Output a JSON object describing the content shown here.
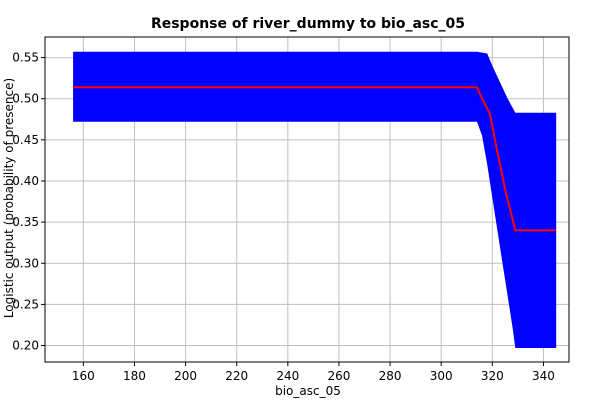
{
  "chart_data": {
    "type": "area",
    "title": "Response of river_dummy to bio_asc_05",
    "xlabel": "bio_asc_05",
    "ylabel": "Logistic output (probability of presence)",
    "xlim": [
      145,
      350
    ],
    "ylim": [
      0.18,
      0.575
    ],
    "x_ticks": [
      160,
      180,
      200,
      220,
      240,
      260,
      280,
      300,
      320,
      340
    ],
    "x_tick_labels": [
      "160",
      "180",
      "200",
      "220",
      "240",
      "260",
      "280",
      "300",
      "320",
      "340"
    ],
    "y_ticks": [
      0.2,
      0.25,
      0.3,
      0.35,
      0.4,
      0.45,
      0.5,
      0.55
    ],
    "y_tick_labels": [
      "0.20",
      "0.25",
      "0.30",
      "0.35",
      "0.40",
      "0.45",
      "0.50",
      "0.55"
    ],
    "grid": true,
    "legend": "none",
    "colors": {
      "band": "#0000ff",
      "mean_line": "#ff0000",
      "grid": "#c0c0c0",
      "axis": "#000000"
    },
    "series": [
      {
        "role": "upper",
        "x": [
          156,
          314,
          318,
          320,
          323,
          326,
          329,
          345
        ],
        "y": [
          0.557,
          0.557,
          0.555,
          0.54,
          0.52,
          0.5,
          0.483,
          0.483
        ]
      },
      {
        "role": "lower",
        "x": [
          156,
          314,
          316,
          318,
          320,
          322,
          324,
          326,
          328,
          329,
          345
        ],
        "y": [
          0.472,
          0.472,
          0.455,
          0.42,
          0.38,
          0.34,
          0.3,
          0.26,
          0.22,
          0.197,
          0.197
        ]
      },
      {
        "role": "mean",
        "x": [
          156,
          314,
          316,
          319,
          322,
          325,
          329,
          345
        ],
        "y": [
          0.514,
          0.514,
          0.5,
          0.482,
          0.435,
          0.39,
          0.34,
          0.34
        ]
      }
    ]
  }
}
